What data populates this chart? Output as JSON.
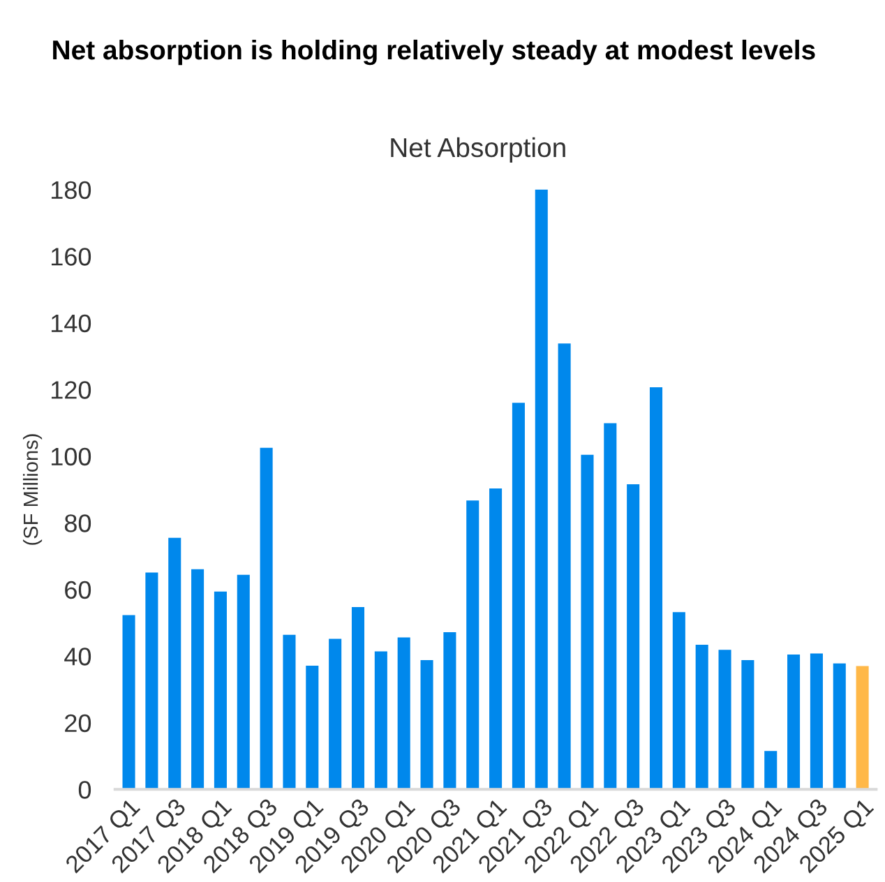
{
  "chart_data": {
    "type": "bar",
    "title": "Net absorption is holding relatively steady at modest levels",
    "subtitle": "Net Absorption",
    "ylabel": "(SF Millions)",
    "categories": [
      "2017 Q1",
      null,
      "2017 Q3",
      null,
      "2018 Q1",
      null,
      "2018 Q3",
      null,
      "2019 Q1",
      null,
      "2019 Q3",
      null,
      "2020 Q1",
      null,
      "2020 Q3",
      null,
      "2021 Q1",
      null,
      "2021 Q3",
      null,
      "2022 Q1",
      null,
      "2022 Q3",
      null,
      "2023 Q1",
      null,
      "2023 Q3",
      null,
      "2024 Q1",
      null,
      "2024 Q3",
      null,
      "2025 Q1"
    ],
    "values": [
      52.3,
      65.1,
      75.5,
      66.1,
      59.4,
      64.4,
      102.5,
      46.4,
      37.1,
      45.2,
      54.7,
      41.4,
      45.6,
      38.8,
      47.2,
      86.7,
      90.3,
      116.0,
      180,
      133.8,
      100.4,
      109.9,
      91.6,
      120.7,
      53.2,
      43.4,
      41.9,
      38.8,
      11.5,
      40.5,
      40.8,
      37.8,
      37.0
    ],
    "colors": [
      "#0088ec",
      "#0088ec",
      "#0088ec",
      "#0088ec",
      "#0088ec",
      "#0088ec",
      "#0088ec",
      "#0088ec",
      "#0088ec",
      "#0088ec",
      "#0088ec",
      "#0088ec",
      "#0088ec",
      "#0088ec",
      "#0088ec",
      "#0088ec",
      "#0088ec",
      "#0088ec",
      "#0088ec",
      "#0088ec",
      "#0088ec",
      "#0088ec",
      "#0088ec",
      "#0088ec",
      "#0088ec",
      "#0088ec",
      "#0088ec",
      "#0088ec",
      "#0088ec",
      "#0088ec",
      "#0088ec",
      "#0088ec",
      "#ffb848"
    ],
    "ylim": [
      0,
      180
    ],
    "yticks": [
      0,
      20,
      40,
      60,
      80,
      100,
      120,
      140,
      160,
      180
    ],
    "grid": false,
    "legend": false
  }
}
